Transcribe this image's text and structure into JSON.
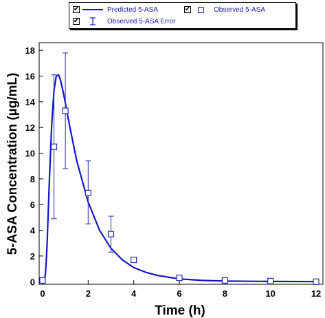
{
  "legend": {
    "items": [
      {
        "label": "Predicted 5-ASA",
        "checked": true,
        "checkmark": "✔",
        "symbol": "line"
      },
      {
        "label": "Observed 5-ASA",
        "checked": true,
        "checkmark": "✔",
        "symbol": "square"
      },
      {
        "label": "Observed 5-ASA Error",
        "checked": true,
        "checkmark": "✔",
        "symbol": "errorbar"
      }
    ]
  },
  "chart_data": {
    "type": "line",
    "xlabel": "Time (h)",
    "ylabel": "5-ASA Concentration (µg/mL)",
    "xlim": [
      -0.15,
      12.3
    ],
    "ylim": [
      -0.2,
      18.6
    ],
    "xticks": [
      0,
      2,
      4,
      6,
      8,
      10,
      12
    ],
    "yticks": [
      0,
      2,
      4,
      6,
      8,
      10,
      12,
      14,
      16,
      18
    ],
    "grid": false,
    "legend_position": "top",
    "colors": {
      "line": "#1414c8",
      "markers": "#2a2ab8",
      "errorbars": "#3a3ab0"
    },
    "series": [
      {
        "name": "Predicted 5-ASA",
        "kind": "line",
        "x": [
          0,
          0.1,
          0.15,
          0.2,
          0.3,
          0.4,
          0.5,
          0.6,
          0.7,
          0.8,
          0.9,
          1.0,
          1.2,
          1.5,
          2.0,
          2.5,
          3.0,
          3.5,
          4.0,
          4.5,
          5.0,
          6.0,
          7.0,
          8.0,
          10.0,
          12.0
        ],
        "y": [
          0,
          0.2,
          1.2,
          3.0,
          8.0,
          12.2,
          14.9,
          16.0,
          16.1,
          15.6,
          14.8,
          13.9,
          12.0,
          9.4,
          6.2,
          4.0,
          2.6,
          1.7,
          1.1,
          0.75,
          0.5,
          0.22,
          0.1,
          0.05,
          0.02,
          0.01
        ]
      },
      {
        "name": "Observed 5-ASA",
        "kind": "scatter",
        "marker": "square",
        "x": [
          0,
          0.5,
          1,
          2,
          3,
          4,
          6,
          8,
          10,
          12
        ],
        "y": [
          0.1,
          10.5,
          13.3,
          6.9,
          3.7,
          1.7,
          0.3,
          0.1,
          0.05,
          0.0
        ]
      },
      {
        "name": "Observed 5-ASA Error",
        "kind": "errorbar",
        "points": [
          {
            "x": 0.5,
            "low": 4.9,
            "high": 16.1
          },
          {
            "x": 1,
            "low": 8.8,
            "high": 17.8
          },
          {
            "x": 2,
            "low": 4.5,
            "high": 9.4
          },
          {
            "x": 3,
            "low": 2.3,
            "high": 5.1
          }
        ]
      }
    ]
  }
}
